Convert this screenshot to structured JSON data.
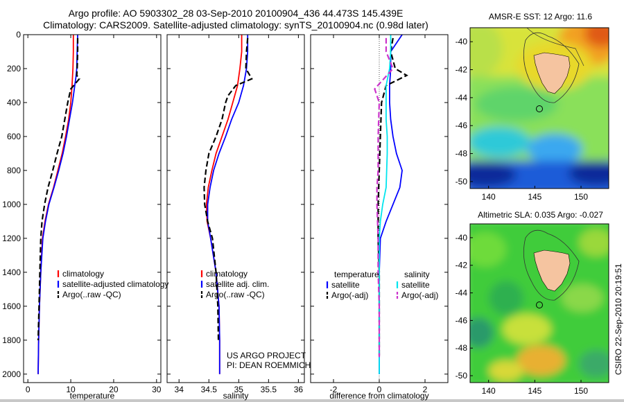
{
  "header": {
    "title_line1": "Argo profile: AO 5903302_28 03-Sep-2010 20100904_436 44.473S 145.439E",
    "title_line2": "Climatology: CARS2009. Satellite-adjusted climatology: synTS_20100904.nc (0.98d later)"
  },
  "credit": "CSIRO 22-Sep-2010 20:19:51",
  "colors": {
    "climatology": "#ff0000",
    "satellite": "#0000ff",
    "argo": "#000000",
    "sat_salinity": "#00e5ee",
    "argo_salinity": "#cc33cc"
  },
  "chart_data": [
    {
      "id": "temperature",
      "type": "line",
      "xlabel": "temperature",
      "xlim": [
        -1,
        31
      ],
      "ylim": [
        2050,
        0
      ],
      "xticks": [
        0,
        10,
        20,
        30
      ],
      "yticks": [
        0,
        200,
        400,
        600,
        800,
        1000,
        1200,
        1400,
        1600,
        1800,
        2000
      ],
      "legend": [
        "climatology",
        "satellite-adjusted climatology",
        "Argo(..raw -QC)"
      ],
      "legend_position": "lower-left",
      "series": [
        {
          "name": "climatology",
          "color": "#ff0000",
          "style": "solid",
          "x": [
            10.6,
            10.6,
            10.5,
            10.3,
            10.0,
            9.5,
            8.8,
            8.0,
            7.0,
            6.0,
            4.8,
            4.0,
            3.4,
            3.0,
            2.7,
            2.5,
            2.4
          ],
          "y": [
            0,
            100,
            200,
            300,
            400,
            500,
            600,
            700,
            800,
            900,
            1000,
            1100,
            1200,
            1400,
            1600,
            1800,
            2000
          ]
        },
        {
          "name": "satellite-adjusted climatology",
          "color": "#0000ff",
          "style": "solid",
          "x": [
            11.6,
            11.5,
            11.4,
            11.2,
            10.4,
            9.7,
            9.0,
            8.2,
            7.2,
            6.1,
            4.9,
            4.1,
            3.5,
            3.0,
            2.7,
            2.5,
            2.4
          ],
          "y": [
            0,
            100,
            200,
            250,
            400,
            500,
            600,
            700,
            800,
            900,
            1000,
            1100,
            1200,
            1400,
            1600,
            1800,
            2000
          ]
        },
        {
          "name": "Argo(..raw -QC)",
          "color": "#000000",
          "style": "dashed",
          "x": [
            11.6,
            11.6,
            11.5,
            11.4,
            12.0,
            10.0,
            9.3,
            8.6,
            7.9,
            6.8,
            5.8,
            4.7,
            3.9,
            3.3,
            3.0,
            2.8,
            2.6,
            2.4
          ],
          "y": [
            20,
            100,
            200,
            240,
            260,
            320,
            400,
            500,
            600,
            700,
            800,
            900,
            1000,
            1100,
            1200,
            1400,
            1600,
            1800
          ]
        }
      ]
    },
    {
      "id": "salinity",
      "type": "line",
      "xlabel": "salinity",
      "xlim": [
        33.8,
        36.1
      ],
      "ylim": [
        2050,
        0
      ],
      "xticks": [
        34,
        34.5,
        35,
        35.5,
        36
      ],
      "xticklabels": [
        "34",
        "34.5",
        "35",
        "35.5",
        "36"
      ],
      "yticks": [
        0,
        200,
        400,
        600,
        800,
        1000,
        1200,
        1400,
        1600,
        1800,
        2000
      ],
      "legend": [
        "climatology",
        "satellite adj. clim.",
        "Argo(..raw -QC)"
      ],
      "legend_position": "lower-left",
      "annotation": [
        "US ARGO PROJECT",
        "PI: DEAN ROEMMICH"
      ],
      "series": [
        {
          "name": "climatology",
          "color": "#ff0000",
          "style": "solid",
          "x": [
            35.05,
            35.05,
            35.02,
            34.98,
            34.9,
            34.82,
            34.72,
            34.62,
            34.55,
            34.49,
            34.46,
            34.47,
            34.53,
            34.62,
            34.67,
            34.68,
            34.68
          ],
          "y": [
            0,
            100,
            200,
            300,
            400,
            500,
            600,
            700,
            800,
            900,
            1000,
            1100,
            1200,
            1400,
            1600,
            1800,
            2000
          ]
        },
        {
          "name": "satellite adj. clim.",
          "color": "#0000ff",
          "style": "solid",
          "x": [
            35.15,
            35.15,
            35.13,
            35.08,
            35.0,
            34.88,
            34.78,
            34.67,
            34.58,
            34.52,
            34.48,
            34.48,
            34.53,
            34.62,
            34.67,
            34.68,
            34.68
          ],
          "y": [
            0,
            100,
            200,
            300,
            400,
            500,
            600,
            700,
            800,
            900,
            1000,
            1100,
            1200,
            1400,
            1600,
            1800,
            2000
          ]
        },
        {
          "name": "Argo(..raw -QC)",
          "color": "#000000",
          "style": "dashed",
          "x": [
            35.15,
            35.13,
            35.12,
            35.22,
            34.95,
            34.82,
            34.78,
            34.72,
            34.62,
            34.5,
            34.45,
            34.42,
            34.43,
            34.48,
            34.56,
            34.62,
            34.65,
            34.66
          ],
          "y": [
            20,
            100,
            200,
            260,
            300,
            360,
            400,
            500,
            600,
            700,
            800,
            900,
            1000,
            1100,
            1200,
            1400,
            1600,
            1800
          ]
        }
      ]
    },
    {
      "id": "difference",
      "type": "line",
      "xlabel": "difference from climatology",
      "xlim": [
        -3,
        3
      ],
      "ylim": [
        2050,
        0
      ],
      "xticks": [
        -2,
        0,
        2
      ],
      "yticks": [
        0,
        200,
        400,
        600,
        800,
        1000,
        1200,
        1400,
        1600,
        1800,
        2000
      ],
      "legend_groups": [
        {
          "heading": "temperature",
          "items": [
            "satellite",
            "Argo(-adj)"
          ]
        },
        {
          "heading": "salinity",
          "items": [
            "satellite",
            "Argo(-adj)"
          ]
        }
      ],
      "series": [
        {
          "name": "temperature satellite",
          "color": "#0000ff",
          "style": "solid",
          "x": [
            1.0,
            0.5,
            0.5,
            0.45,
            0.45,
            0.5,
            0.6,
            0.75,
            1.0,
            0.9,
            0.6,
            0.3,
            0.05,
            0.0,
            0.0,
            0.0,
            0.0
          ],
          "y": [
            0,
            100,
            200,
            300,
            400,
            500,
            600,
            700,
            800,
            900,
            1000,
            1100,
            1200,
            1400,
            1600,
            1800,
            2000
          ]
        },
        {
          "name": "temperature Argo(-adj)",
          "color": "#000000",
          "style": "dashed",
          "x": [
            0.6,
            0.5,
            0.7,
            1.2,
            0.3,
            0.1,
            0.05,
            0.0,
            -0.05,
            -0.05,
            0.0,
            0.0,
            0.0,
            0.0
          ],
          "y": [
            20,
            100,
            200,
            240,
            300,
            400,
            600,
            800,
            1000,
            1200,
            1400,
            1600,
            1800,
            1900
          ]
        },
        {
          "name": "salinity satellite",
          "color": "#00e5ee",
          "style": "solid",
          "x": [
            0.5,
            0.5,
            0.45,
            0.3,
            0.3,
            0.3,
            0.35,
            0.35,
            0.3,
            0.15,
            0.05,
            0.0,
            0.0,
            0.0,
            0.0
          ],
          "y": [
            0,
            100,
            200,
            300,
            400,
            500,
            600,
            700,
            900,
            1000,
            1100,
            1200,
            1400,
            1800,
            2000
          ]
        },
        {
          "name": "salinity Argo(-adj)",
          "color": "#cc33cc",
          "style": "dashed",
          "x": [
            0.3,
            0.3,
            0.6,
            -0.2,
            0.0,
            -0.05,
            -0.05,
            -0.1,
            -0.1,
            -0.05,
            -0.05,
            0.0,
            0.0,
            0.0
          ],
          "y": [
            20,
            100,
            200,
            320,
            400,
            600,
            800,
            900,
            1000,
            1200,
            1400,
            1600,
            1800,
            1900
          ]
        }
      ]
    },
    {
      "id": "sst-map",
      "type": "heatmap",
      "title": "AMSR-E SST: 12 Argo: 11.6",
      "xlim": [
        138,
        153
      ],
      "ylim": [
        -50.5,
        -39
      ],
      "xticks": [
        140,
        145,
        150
      ],
      "yticks": [
        -40,
        -42,
        -44,
        -46,
        -48,
        -50
      ],
      "marker": {
        "lon": 145.439,
        "lat": -44.473
      }
    },
    {
      "id": "sla-map",
      "type": "heatmap",
      "title": "Altimetric SLA: 0.035 Argo: -0.027",
      "xlim": [
        138,
        153
      ],
      "ylim": [
        -50.5,
        -39
      ],
      "xticks": [
        140,
        145,
        150
      ],
      "yticks": [
        -40,
        -42,
        -44,
        -46,
        -48,
        -50
      ],
      "marker": {
        "lon": 145.439,
        "lat": -44.473
      }
    }
  ]
}
